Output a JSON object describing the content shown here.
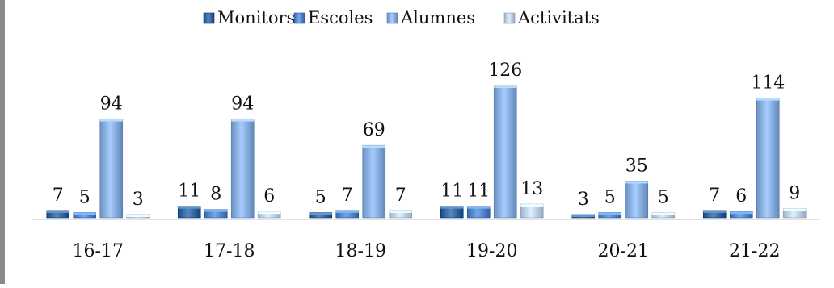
{
  "chart_data": {
    "type": "bar",
    "categories": [
      "16-17",
      "17-18",
      "18-19",
      "19-20",
      "20-21",
      "21-22"
    ],
    "series": [
      {
        "name": "Monitors",
        "values": [
          7,
          11,
          5,
          11,
          3,
          7
        ],
        "color": "#3d6ea8"
      },
      {
        "name": "Escoles",
        "values": [
          5,
          8,
          7,
          11,
          5,
          6
        ],
        "color": "#5b8ed1"
      },
      {
        "name": "Alumnes",
        "values": [
          94,
          94,
          69,
          126,
          35,
          114
        ],
        "color": "#8eb4e6"
      },
      {
        "name": "Activitats",
        "values": [
          3,
          6,
          7,
          13,
          5,
          9
        ],
        "color": "#c4d6ee"
      }
    ],
    "ylim": [
      0,
      130
    ],
    "legend_position": "top-center",
    "grid": false,
    "data_labels": true
  }
}
